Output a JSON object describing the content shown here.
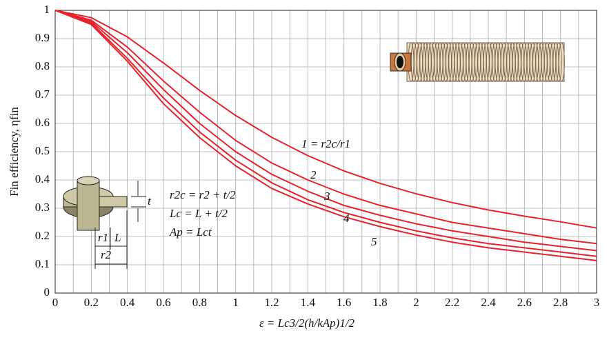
{
  "chart_data": {
    "type": "line",
    "y_label": "Fin efficiency, ηfin",
    "x_label": "ε = Lc3/2(h/kAp)1/2",
    "x": [
      0,
      0.2,
      0.4,
      0.6,
      0.8,
      1.0,
      1.2,
      1.4,
      1.6,
      1.8,
      2.0,
      2.2,
      2.4,
      2.6,
      2.8,
      3.0
    ],
    "series": [
      {
        "name": "1 = r2c/r1",
        "color": "#e8202a",
        "values": [
          1,
          0.974,
          0.906,
          0.814,
          0.717,
          0.628,
          0.551,
          0.486,
          0.432,
          0.388,
          0.351,
          0.32,
          0.294,
          0.272,
          0.252,
          0.23
        ]
      },
      {
        "name": "2",
        "color": "#e8202a",
        "values": [
          1,
          0.965,
          0.87,
          0.75,
          0.64,
          0.54,
          0.46,
          0.4,
          0.35,
          0.31,
          0.28,
          0.25,
          0.23,
          0.21,
          0.19,
          0.175
        ]
      },
      {
        "name": "3",
        "color": "#e8202a",
        "values": [
          1,
          0.96,
          0.85,
          0.72,
          0.6,
          0.5,
          0.42,
          0.36,
          0.31,
          0.275,
          0.245,
          0.22,
          0.2,
          0.18,
          0.165,
          0.15
        ]
      },
      {
        "name": "4",
        "color": "#e8202a",
        "values": [
          1,
          0.955,
          0.83,
          0.69,
          0.57,
          0.47,
          0.39,
          0.33,
          0.285,
          0.25,
          0.22,
          0.195,
          0.175,
          0.16,
          0.145,
          0.13
        ]
      },
      {
        "name": "5",
        "color": "#e8202a",
        "values": [
          1,
          0.95,
          0.82,
          0.67,
          0.55,
          0.45,
          0.37,
          0.315,
          0.27,
          0.235,
          0.205,
          0.18,
          0.16,
          0.145,
          0.13,
          0.115
        ]
      }
    ],
    "xlim": [
      0,
      3
    ],
    "ylim": [
      0,
      1
    ],
    "xticks": [
      0,
      0.2,
      0.4,
      0.6,
      0.8,
      1,
      1.2,
      1.4,
      1.6,
      1.8,
      2,
      2.2,
      2.4,
      2.6,
      2.8,
      3
    ],
    "x_minor_ticks": [
      0.1,
      0.3,
      0.5,
      0.7,
      0.9,
      1.1,
      1.3,
      1.5,
      1.7,
      1.9,
      2.1,
      2.3,
      2.5,
      2.7,
      2.9
    ],
    "yticks": [
      0,
      0.1,
      0.2,
      0.3,
      0.4,
      0.5,
      0.6,
      0.7,
      0.8,
      0.9,
      1
    ],
    "grid": true,
    "formulas": [
      "r2c = r2 + t/2",
      "Lc = L + t/2",
      "Ap = Lct"
    ],
    "diagram_labels": [
      "t",
      "r1",
      "L",
      "r2"
    ]
  }
}
